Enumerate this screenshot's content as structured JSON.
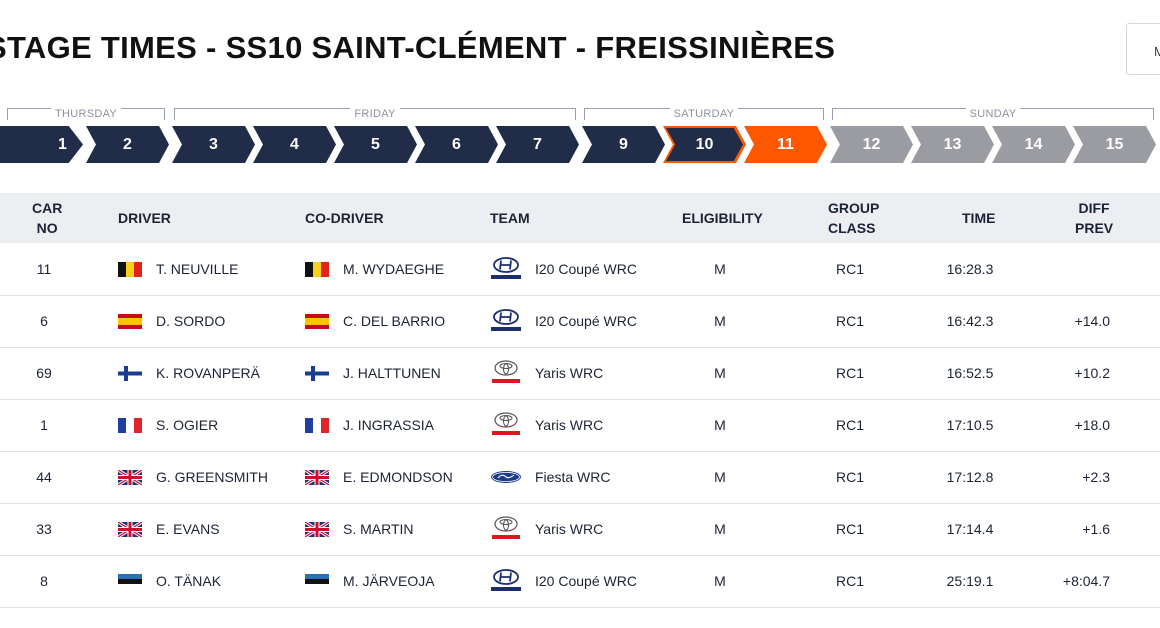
{
  "page": {
    "title": "STAGE TIMES - SS10 SAINT-CLÉMENT - FREISSINIÈRES",
    "top_right_text": "M"
  },
  "days": [
    {
      "label": "THURSDAY"
    },
    {
      "label": "FRIDAY"
    },
    {
      "label": "SATURDAY"
    },
    {
      "label": "SUNDAY"
    }
  ],
  "stages": [
    {
      "label": "1",
      "state": "done"
    },
    {
      "label": "2",
      "state": "done"
    },
    {
      "label": "3",
      "state": "done"
    },
    {
      "label": "4",
      "state": "done"
    },
    {
      "label": "5",
      "state": "done"
    },
    {
      "label": "6",
      "state": "done"
    },
    {
      "label": "7",
      "state": "done"
    },
    {
      "label": "9",
      "state": "done"
    },
    {
      "label": "10",
      "state": "selected"
    },
    {
      "label": "11",
      "state": "current"
    },
    {
      "label": "12",
      "state": "upcoming"
    },
    {
      "label": "13",
      "state": "upcoming"
    },
    {
      "label": "14",
      "state": "upcoming"
    },
    {
      "label": "15",
      "state": "upcoming"
    }
  ],
  "table": {
    "headers": {
      "car_no": "CAR\nNO",
      "driver": "DRIVER",
      "codriver": "CO-DRIVER",
      "team": "TEAM",
      "eligibility": "ELIGIBILITY",
      "group_class": "GROUP\nCLASS",
      "time": "TIME",
      "diff_prev": "DIFF\nPREV"
    },
    "rows": [
      {
        "car_no": "11",
        "driver": "T. NEUVILLE",
        "driver_flag": "belgium",
        "codriver": "M. WYDAEGHE",
        "codriver_flag": "belgium",
        "team_logo": "hyundai-logo-icon",
        "team": "I20 Coupé WRC",
        "eligibility": "M",
        "group_class": "RC1",
        "time": "16:28.3",
        "diff_prev": ""
      },
      {
        "car_no": "6",
        "driver": "D. SORDO",
        "driver_flag": "spain",
        "codriver": "C. DEL BARRIO",
        "codriver_flag": "spain",
        "team_logo": "hyundai-logo-icon",
        "team": "I20 Coupé WRC",
        "eligibility": "M",
        "group_class": "RC1",
        "time": "16:42.3",
        "diff_prev": "+14.0"
      },
      {
        "car_no": "69",
        "driver": "K. ROVANPERÄ",
        "driver_flag": "finland",
        "codriver": "J. HALTTUNEN",
        "codriver_flag": "finland",
        "team_logo": "toyota-logo-icon",
        "team": "Yaris WRC",
        "eligibility": "M",
        "group_class": "RC1",
        "time": "16:52.5",
        "diff_prev": "+10.2"
      },
      {
        "car_no": "1",
        "driver": "S. OGIER",
        "driver_flag": "france",
        "codriver": "J. INGRASSIA",
        "codriver_flag": "france",
        "team_logo": "toyota-logo-icon",
        "team": "Yaris WRC",
        "eligibility": "M",
        "group_class": "RC1",
        "time": "17:10.5",
        "diff_prev": "+18.0"
      },
      {
        "car_no": "44",
        "driver": "G. GREENSMITH",
        "driver_flag": "uk",
        "codriver": "E. EDMONDSON",
        "codriver_flag": "uk",
        "team_logo": "ford-logo-icon",
        "team": "Fiesta WRC",
        "eligibility": "M",
        "group_class": "RC1",
        "time": "17:12.8",
        "diff_prev": "+2.3"
      },
      {
        "car_no": "33",
        "driver": "E. EVANS",
        "driver_flag": "uk",
        "codriver": "S. MARTIN",
        "codriver_flag": "uk",
        "team_logo": "toyota-logo-icon",
        "team": "Yaris WRC",
        "eligibility": "M",
        "group_class": "RC1",
        "time": "17:14.4",
        "diff_prev": "+1.6"
      },
      {
        "car_no": "8",
        "driver": "O. TÄNAK",
        "driver_flag": "estonia",
        "codriver": "M. JÄRVEOJA",
        "codriver_flag": "estonia",
        "team_logo": "hyundai-logo-icon",
        "team": "I20 Coupé WRC",
        "eligibility": "M",
        "group_class": "RC1",
        "time": "25:19.1",
        "diff_prev": "+8:04.7"
      }
    ]
  },
  "colors": {
    "stage_done": "#202c48",
    "stage_current": "#ff5800",
    "stage_upcoming": "#9a9ca1",
    "header_bg": "#eceef2"
  }
}
